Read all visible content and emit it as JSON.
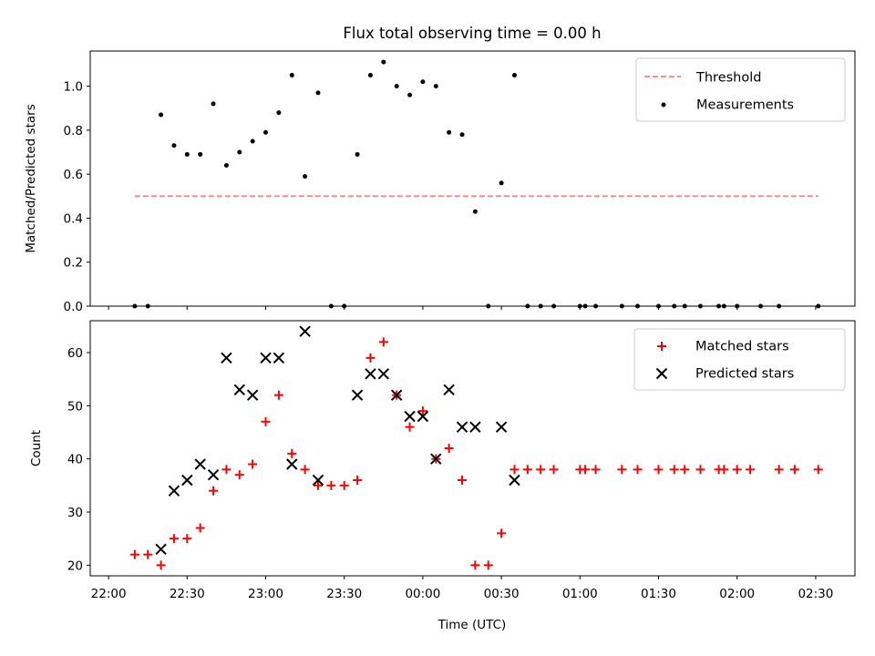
{
  "title": "Flux total observing time = 0.00 h",
  "colors": {
    "threshold": "#ff8080",
    "measurement": "#000000",
    "matched": "#ff0000",
    "predicted": "#000000"
  },
  "chart_data": [
    {
      "type": "scatter",
      "xlabel": "",
      "ylabel": "Matched/Predicted stars",
      "xlim": [
        "21:53",
        "02:45"
      ],
      "ylim": [
        0,
        1.16
      ],
      "yticks": [
        0.0,
        0.2,
        0.4,
        0.6,
        0.8,
        1.0
      ],
      "grid": false,
      "legend_position": "top-right",
      "legend": [
        {
          "label": "Threshold",
          "kind": "dashed-line"
        },
        {
          "label": "Measurements",
          "kind": "dot"
        }
      ],
      "threshold": {
        "name": "Threshold",
        "y": 0.5,
        "x": [
          "22:10",
          "02:31"
        ]
      },
      "series": [
        {
          "name": "Measurements",
          "points": [
            {
              "t": "22:10",
              "y": 0.0
            },
            {
              "t": "22:15",
              "y": 0.0
            },
            {
              "t": "22:20",
              "y": 0.87
            },
            {
              "t": "22:25",
              "y": 0.73
            },
            {
              "t": "22:30",
              "y": 0.69
            },
            {
              "t": "22:35",
              "y": 0.69
            },
            {
              "t": "22:40",
              "y": 0.92
            },
            {
              "t": "22:45",
              "y": 0.64
            },
            {
              "t": "22:50",
              "y": 0.7
            },
            {
              "t": "22:55",
              "y": 0.75
            },
            {
              "t": "23:00",
              "y": 0.79
            },
            {
              "t": "23:05",
              "y": 0.88
            },
            {
              "t": "23:10",
              "y": 1.05
            },
            {
              "t": "23:15",
              "y": 0.59
            },
            {
              "t": "23:20",
              "y": 0.97
            },
            {
              "t": "23:25",
              "y": 0.0
            },
            {
              "t": "23:30",
              "y": 0.0
            },
            {
              "t": "23:35",
              "y": 0.69
            },
            {
              "t": "23:40",
              "y": 1.05
            },
            {
              "t": "23:45",
              "y": 1.11
            },
            {
              "t": "23:50",
              "y": 1.0
            },
            {
              "t": "23:55",
              "y": 0.96
            },
            {
              "t": "00:00",
              "y": 1.02
            },
            {
              "t": "00:05",
              "y": 1.0
            },
            {
              "t": "00:10",
              "y": 0.79
            },
            {
              "t": "00:15",
              "y": 0.78
            },
            {
              "t": "00:20",
              "y": 0.43
            },
            {
              "t": "00:25",
              "y": 0.0
            },
            {
              "t": "00:30",
              "y": 0.56
            },
            {
              "t": "00:35",
              "y": 1.05
            },
            {
              "t": "00:40",
              "y": 0.0
            },
            {
              "t": "00:45",
              "y": 0.0
            },
            {
              "t": "00:50",
              "y": 0.0
            },
            {
              "t": "01:00",
              "y": 0.0
            },
            {
              "t": "01:02",
              "y": 0.0
            },
            {
              "t": "01:06",
              "y": 0.0
            },
            {
              "t": "01:16",
              "y": 0.0
            },
            {
              "t": "01:22",
              "y": 0.0
            },
            {
              "t": "01:30",
              "y": 0.0
            },
            {
              "t": "01:36",
              "y": 0.0
            },
            {
              "t": "01:40",
              "y": 0.0
            },
            {
              "t": "01:46",
              "y": 0.0
            },
            {
              "t": "01:53",
              "y": 0.0
            },
            {
              "t": "01:55",
              "y": 0.0
            },
            {
              "t": "02:00",
              "y": 0.0
            },
            {
              "t": "02:09",
              "y": 0.0
            },
            {
              "t": "02:16",
              "y": 0.0
            },
            {
              "t": "02:31",
              "y": 0.0
            }
          ]
        }
      ]
    },
    {
      "type": "scatter",
      "xlabel": "Time (UTC)",
      "ylabel": "Count",
      "xlim": [
        "21:53",
        "02:45"
      ],
      "ylim": [
        18,
        66
      ],
      "yticks": [
        20,
        30,
        40,
        50,
        60
      ],
      "xticks": [
        "22:00",
        "22:30",
        "23:00",
        "23:30",
        "00:00",
        "00:30",
        "01:00",
        "01:30",
        "02:00",
        "02:30"
      ],
      "grid": false,
      "legend_position": "top-right",
      "series": [
        {
          "name": "Matched stars",
          "marker": "+",
          "points": [
            {
              "t": "22:10",
              "y": 22
            },
            {
              "t": "22:15",
              "y": 22
            },
            {
              "t": "22:20",
              "y": 20
            },
            {
              "t": "22:25",
              "y": 25
            },
            {
              "t": "22:30",
              "y": 25
            },
            {
              "t": "22:35",
              "y": 27
            },
            {
              "t": "22:40",
              "y": 34
            },
            {
              "t": "22:45",
              "y": 38
            },
            {
              "t": "22:50",
              "y": 37
            },
            {
              "t": "22:55",
              "y": 39
            },
            {
              "t": "23:00",
              "y": 47
            },
            {
              "t": "23:05",
              "y": 52
            },
            {
              "t": "23:10",
              "y": 41
            },
            {
              "t": "23:15",
              "y": 38
            },
            {
              "t": "23:20",
              "y": 35
            },
            {
              "t": "23:25",
              "y": 35
            },
            {
              "t": "23:30",
              "y": 35
            },
            {
              "t": "23:35",
              "y": 36
            },
            {
              "t": "23:40",
              "y": 59
            },
            {
              "t": "23:45",
              "y": 62
            },
            {
              "t": "23:50",
              "y": 52
            },
            {
              "t": "23:55",
              "y": 46
            },
            {
              "t": "00:00",
              "y": 49
            },
            {
              "t": "00:05",
              "y": 40
            },
            {
              "t": "00:10",
              "y": 42
            },
            {
              "t": "00:15",
              "y": 36
            },
            {
              "t": "00:20",
              "y": 20
            },
            {
              "t": "00:25",
              "y": 20
            },
            {
              "t": "00:30",
              "y": 26
            },
            {
              "t": "00:35",
              "y": 38
            },
            {
              "t": "00:40",
              "y": 38
            },
            {
              "t": "00:45",
              "y": 38
            },
            {
              "t": "00:50",
              "y": 38
            },
            {
              "t": "01:00",
              "y": 38
            },
            {
              "t": "01:02",
              "y": 38
            },
            {
              "t": "01:06",
              "y": 38
            },
            {
              "t": "01:16",
              "y": 38
            },
            {
              "t": "01:22",
              "y": 38
            },
            {
              "t": "01:30",
              "y": 38
            },
            {
              "t": "01:36",
              "y": 38
            },
            {
              "t": "01:40",
              "y": 38
            },
            {
              "t": "01:46",
              "y": 38
            },
            {
              "t": "01:53",
              "y": 38
            },
            {
              "t": "01:55",
              "y": 38
            },
            {
              "t": "02:00",
              "y": 38
            },
            {
              "t": "02:05",
              "y": 38
            },
            {
              "t": "02:16",
              "y": 38
            },
            {
              "t": "02:22",
              "y": 38
            },
            {
              "t": "02:31",
              "y": 38
            }
          ]
        },
        {
          "name": "Predicted stars",
          "marker": "x",
          "points": [
            {
              "t": "22:20",
              "y": 23
            },
            {
              "t": "22:25",
              "y": 34
            },
            {
              "t": "22:30",
              "y": 36
            },
            {
              "t": "22:35",
              "y": 39
            },
            {
              "t": "22:40",
              "y": 37
            },
            {
              "t": "22:45",
              "y": 59
            },
            {
              "t": "22:50",
              "y": 53
            },
            {
              "t": "22:55",
              "y": 52
            },
            {
              "t": "23:00",
              "y": 59
            },
            {
              "t": "23:05",
              "y": 59
            },
            {
              "t": "23:10",
              "y": 39
            },
            {
              "t": "23:15",
              "y": 64
            },
            {
              "t": "23:20",
              "y": 36
            },
            {
              "t": "23:35",
              "y": 52
            },
            {
              "t": "23:40",
              "y": 56
            },
            {
              "t": "23:45",
              "y": 56
            },
            {
              "t": "23:50",
              "y": 52
            },
            {
              "t": "23:55",
              "y": 48
            },
            {
              "t": "00:00",
              "y": 48
            },
            {
              "t": "00:05",
              "y": 40
            },
            {
              "t": "00:10",
              "y": 53
            },
            {
              "t": "00:15",
              "y": 46
            },
            {
              "t": "00:20",
              "y": 46
            },
            {
              "t": "00:30",
              "y": 46
            },
            {
              "t": "00:35",
              "y": 36
            }
          ]
        }
      ]
    }
  ]
}
